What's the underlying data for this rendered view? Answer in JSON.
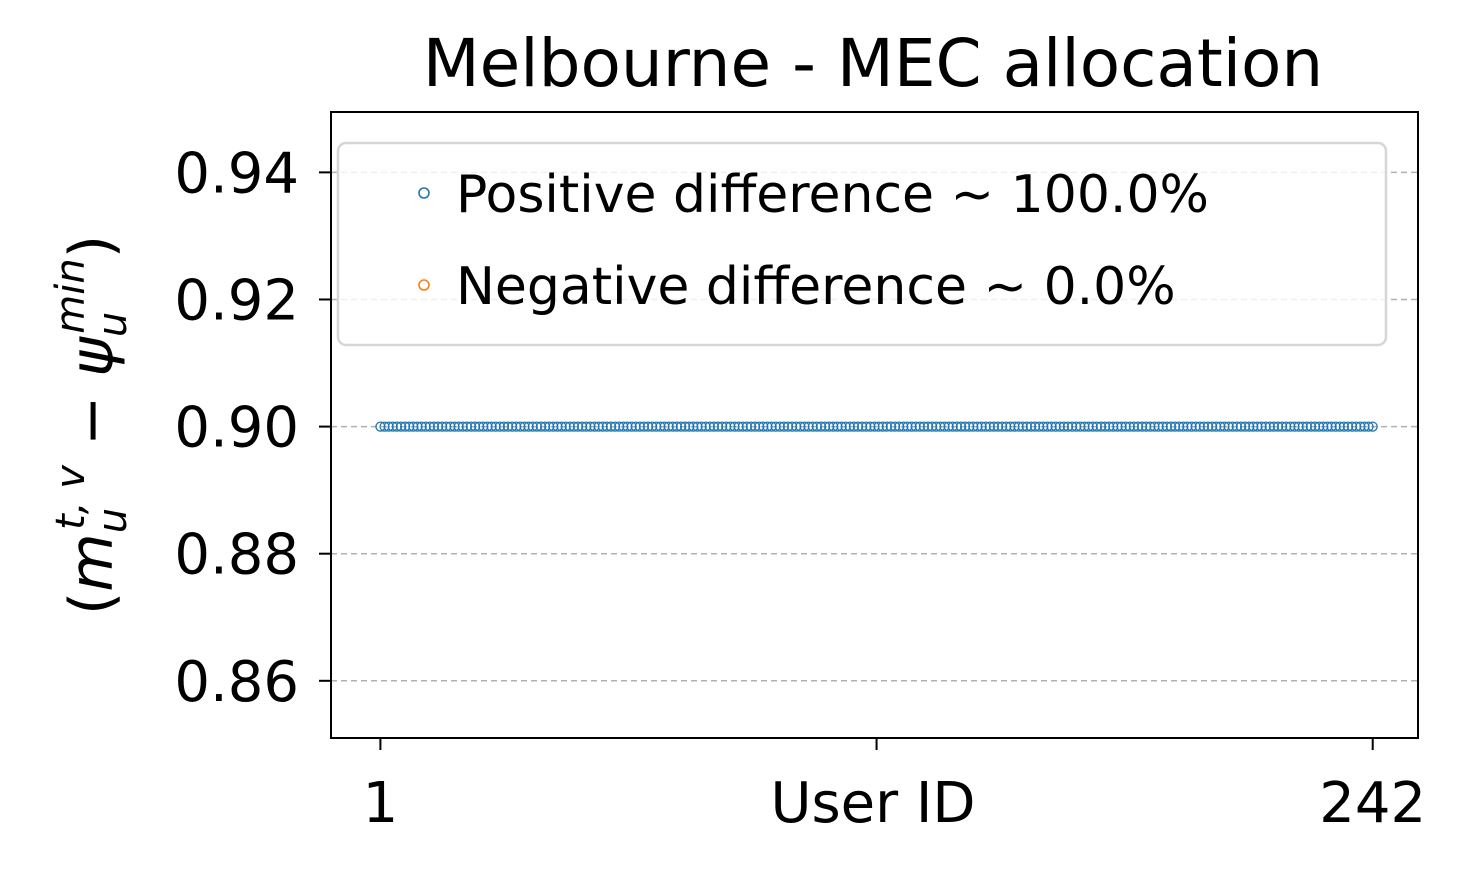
{
  "chart_data": {
    "type": "scatter",
    "title": "Melbourne - MEC allocation",
    "xlabel": "User ID",
    "ylabel_parts": {
      "open": "(",
      "m": "m",
      "m_sub": "u",
      "m_sup": "t, v",
      "minus": " − ",
      "psi": "ψ",
      "psi_sub": "u",
      "psi_sup": "min",
      "close": ")"
    },
    "xticks": [
      1,
      242
    ],
    "yticks": [
      "0.86",
      "0.88",
      "0.90",
      "0.92",
      "0.94"
    ],
    "xlim": [
      -11,
      253
    ],
    "ylim": [
      0.851,
      0.9495
    ],
    "grid": {
      "axis": "y",
      "style": "dashed"
    },
    "legend_position": "top",
    "series": [
      {
        "name": "Positive difference ~ 100.0%",
        "color": "#1f77b4",
        "marker": "hollow-circle",
        "x_start": 1,
        "x_end": 242,
        "y": 0.9
      },
      {
        "name": "Negative difference ~ 0.0%",
        "color": "#ff7f0e",
        "marker": "hollow-circle",
        "x_start": 1,
        "x_end": 0,
        "y": 0.9
      }
    ]
  }
}
